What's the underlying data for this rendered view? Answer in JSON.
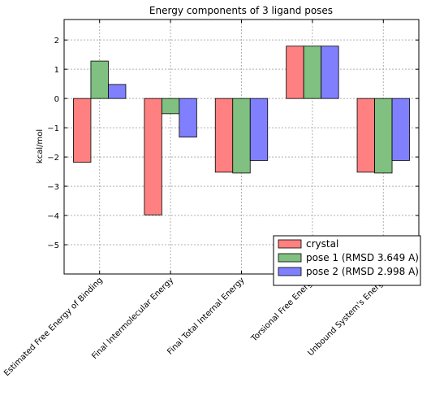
{
  "chart_data": {
    "type": "bar",
    "title": "Energy components of 3 ligand poses",
    "xlabel": "",
    "ylabel": "kcal/mol",
    "ylim": [
      -6,
      2.7
    ],
    "yticks": [
      -5,
      -4,
      -3,
      -2,
      -1,
      0,
      1,
      2
    ],
    "ytick_labels": [
      "−5",
      "−4",
      "−3",
      "−2",
      "−1",
      "0",
      "1",
      "2"
    ],
    "grid": true,
    "legend_position": "bottom-right",
    "categories": [
      "Estimated Free Energy of Binding",
      "Final Intermolecular Energy",
      "Final Total Internal Energy",
      "Torsional Free Energy",
      "Unbound System's Energy"
    ],
    "series": [
      {
        "name": "crystal",
        "color": "#ff8080",
        "values": [
          -2.18,
          -3.98,
          -2.52,
          1.79,
          -2.52
        ]
      },
      {
        "name": "pose 1 (RMSD 3.649 A)",
        "color": "#80c080",
        "values": [
          1.28,
          -0.52,
          -2.55,
          1.79,
          -2.55
        ]
      },
      {
        "name": "pose 2 (RMSD 2.998 A)",
        "color": "#8080ff",
        "values": [
          0.48,
          -1.32,
          -2.12,
          1.79,
          -2.12
        ]
      }
    ]
  }
}
